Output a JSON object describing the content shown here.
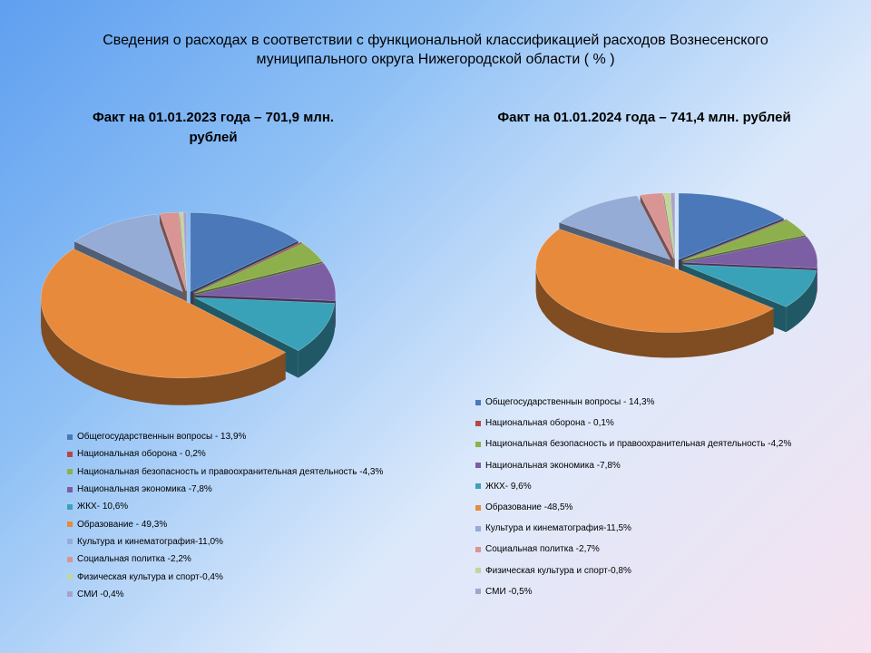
{
  "title_lines": [
    "Сведения о расходах в соответствии с функциональной классификацией расходов Вознесенского",
    "муниципального округа Нижегородской области ( % )"
  ],
  "chart_data": [
    {
      "type": "pie",
      "title_lines": [
        "Факт на 01.01.2023 года – 701,9 млн.",
        "рублей"
      ],
      "labels": [
        "Общегосударственнын вопросы - 13,9%",
        "Национальная оборона - 0,2%",
        "Национальная безопасность и правоохранительная деятельность -4,3%",
        "Национальная экономика -7,8%",
        "ЖКХ- 10,6%",
        "Образование - 49,3%",
        "Культура и кинематография-11,0%",
        "Социальная политка -2,2%",
        "Физическая культура и спорт-0,4%",
        "СМИ -0,4%"
      ],
      "values": [
        13.9,
        0.2,
        4.3,
        7.8,
        10.6,
        49.3,
        11.0,
        2.2,
        0.4,
        0.4
      ],
      "legend_position": "bottom"
    },
    {
      "type": "pie",
      "title_lines": [
        "Факт на 01.01.2024 года – 741,4 млн. рублей"
      ],
      "labels": [
        "Общегосударственнын вопросы - 14,3%",
        "Национальная оборона - 0,1%",
        "Национальная безопасность и правоохранительная деятельность -4,2%",
        "Национальная экономика -7,8%",
        "ЖКХ- 9,6%",
        "Образование -48,5%",
        "Культура и кинематография-11,5%",
        "Социальная политка -2,7%",
        "Физическая культура и спорт-0,8%",
        "СМИ -0,5%"
      ],
      "values": [
        14.3,
        0.1,
        4.2,
        7.8,
        9.6,
        48.5,
        11.5,
        2.7,
        0.8,
        0.5
      ],
      "legend_position": "bottom"
    }
  ],
  "colors": [
    "#4a78b8",
    "#b54745",
    "#8db04d",
    "#7b5ea3",
    "#3aa2b8",
    "#e88a3c",
    "#94acd6",
    "#d99594",
    "#c2d69b",
    "#a7a2cc"
  ]
}
